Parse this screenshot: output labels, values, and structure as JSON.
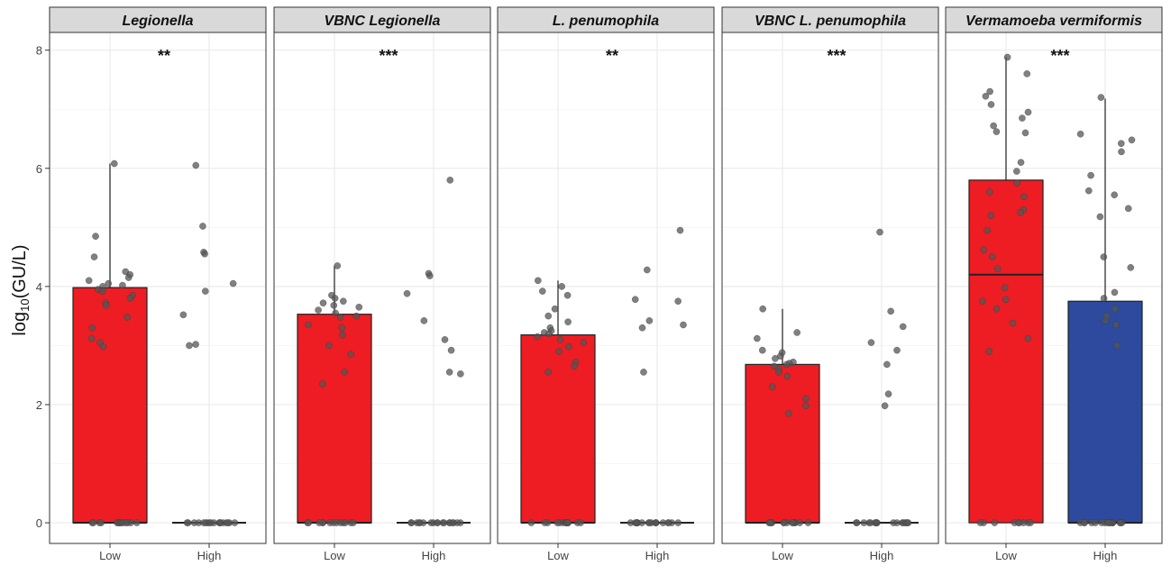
{
  "chart_data": {
    "type": "bar",
    "ylabel": "log10(GU/L)",
    "ylim": [
      -0.35,
      8.3
    ],
    "yticks": [
      0,
      2,
      4,
      6,
      8
    ],
    "categories": [
      "Low",
      "High"
    ],
    "colors": {
      "Low": "#ee1d23",
      "High": "#2e4a9e",
      "point": "#555555",
      "strip": "#d9d9d9"
    },
    "panels": [
      {
        "title": "Legionella",
        "significance": "**",
        "bars": [
          {
            "category": "Low",
            "value": 3.98,
            "error_upper": 6.08,
            "median": 0
          },
          {
            "category": "High",
            "value": 0,
            "error_upper": null,
            "median": 0
          }
        ],
        "points": {
          "Low": [
            0,
            0,
            0,
            0,
            0,
            0,
            0,
            0,
            0,
            0,
            0,
            0,
            0,
            0,
            6.08,
            4.85,
            4.5,
            4.25,
            4.2,
            4.15,
            4.1,
            4.05,
            4.02,
            4.0,
            3.95,
            3.92,
            3.85,
            3.8,
            3.72,
            3.68,
            3.48,
            3.3,
            3.12,
            3.05,
            2.98
          ],
          "High": [
            0,
            0,
            0,
            0,
            0,
            0,
            0,
            0,
            0,
            0,
            0,
            0,
            0,
            0,
            0,
            0,
            0,
            0,
            6.05,
            5.02,
            4.58,
            4.55,
            4.05,
            3.92,
            3.52,
            3.02,
            3.0
          ]
        }
      },
      {
        "title": "VBNC Legionella",
        "significance": "***",
        "bars": [
          {
            "category": "Low",
            "value": 3.53,
            "error_upper": 4.35,
            "median": 0
          },
          {
            "category": "High",
            "value": 0,
            "error_upper": null,
            "median": 0
          }
        ],
        "points": {
          "Low": [
            0,
            0,
            0,
            0,
            0,
            0,
            0,
            0,
            0,
            0,
            0,
            0,
            0,
            4.35,
            3.85,
            3.8,
            3.75,
            3.72,
            3.68,
            3.65,
            3.6,
            3.55,
            3.5,
            3.48,
            3.35,
            3.3,
            3.18,
            3.0,
            2.85,
            2.55,
            2.35
          ],
          "High": [
            0,
            0,
            0,
            0,
            0,
            0,
            0,
            0,
            0,
            0,
            0,
            0,
            0,
            0,
            0,
            0,
            0,
            0,
            5.8,
            4.22,
            4.18,
            3.88,
            3.42,
            3.1,
            2.92,
            2.55,
            2.52
          ]
        }
      },
      {
        "title": "L. penumophila",
        "significance": "**",
        "bars": [
          {
            "category": "Low",
            "value": 3.18,
            "error_upper": 4.1,
            "median": 0
          },
          {
            "category": "High",
            "value": 0,
            "error_upper": null,
            "median": 0
          }
        ],
        "points": {
          "Low": [
            0,
            0,
            0,
            0,
            0,
            0,
            0,
            0,
            0,
            0,
            0,
            0,
            0,
            4.1,
            4.0,
            3.92,
            3.85,
            3.62,
            3.5,
            3.4,
            3.3,
            3.25,
            3.22,
            3.2,
            3.15,
            3.1,
            3.05,
            2.98,
            2.9,
            2.72,
            2.65,
            2.55
          ],
          "High": [
            0,
            0,
            0,
            0,
            0,
            0,
            0,
            0,
            0,
            0,
            0,
            0,
            0,
            0,
            0,
            0,
            0,
            0,
            4.95,
            4.28,
            3.78,
            3.75,
            3.42,
            3.35,
            3.3,
            2.55
          ]
        }
      },
      {
        "title": "VBNC L. penumophila",
        "significance": "***",
        "bars": [
          {
            "category": "Low",
            "value": 2.68,
            "error_upper": 3.62,
            "median": 0
          },
          {
            "category": "High",
            "value": 0,
            "error_upper": null,
            "median": 0
          }
        ],
        "points": {
          "Low": [
            0,
            0,
            0,
            0,
            0,
            0,
            0,
            0,
            0,
            0,
            0,
            0,
            0,
            3.62,
            3.22,
            3.12,
            2.92,
            2.88,
            2.82,
            2.78,
            2.72,
            2.7,
            2.68,
            2.65,
            2.6,
            2.55,
            2.48,
            2.3,
            2.1,
            1.98,
            1.85
          ],
          "High": [
            0,
            0,
            0,
            0,
            0,
            0,
            0,
            0,
            0,
            0,
            0,
            0,
            0,
            0,
            0,
            0,
            0,
            0,
            4.92,
            3.58,
            3.32,
            3.05,
            2.92,
            2.68,
            2.18,
            1.98
          ]
        }
      },
      {
        "title": "Vermamoeba vermiformis",
        "significance": "***",
        "bars": [
          {
            "category": "Low",
            "value": 5.8,
            "error_upper": 7.88,
            "median": 4.2
          },
          {
            "category": "High",
            "value": 3.75,
            "error_upper": 7.18,
            "median": 0
          }
        ],
        "points": {
          "Low": [
            0,
            0,
            0,
            0,
            0,
            0,
            0,
            0,
            0,
            7.88,
            7.6,
            7.3,
            7.22,
            7.08,
            6.95,
            6.85,
            6.72,
            6.62,
            6.6,
            6.1,
            5.95,
            5.75,
            5.6,
            5.52,
            5.3,
            5.25,
            5.2,
            4.95,
            4.62,
            4.5,
            4.3,
            3.98,
            3.78,
            3.75,
            3.62,
            3.38,
            3.12,
            2.9
          ],
          "High": [
            0,
            0,
            0,
            0,
            0,
            0,
            0,
            0,
            0,
            0,
            0,
            0,
            0,
            0,
            0,
            0,
            7.2,
            6.58,
            6.48,
            6.42,
            6.28,
            5.88,
            5.62,
            5.55,
            5.32,
            5.18,
            4.5,
            4.32,
            3.9,
            3.8,
            3.62,
            3.5,
            3.42,
            3.35,
            3.0
          ]
        }
      }
    ]
  }
}
